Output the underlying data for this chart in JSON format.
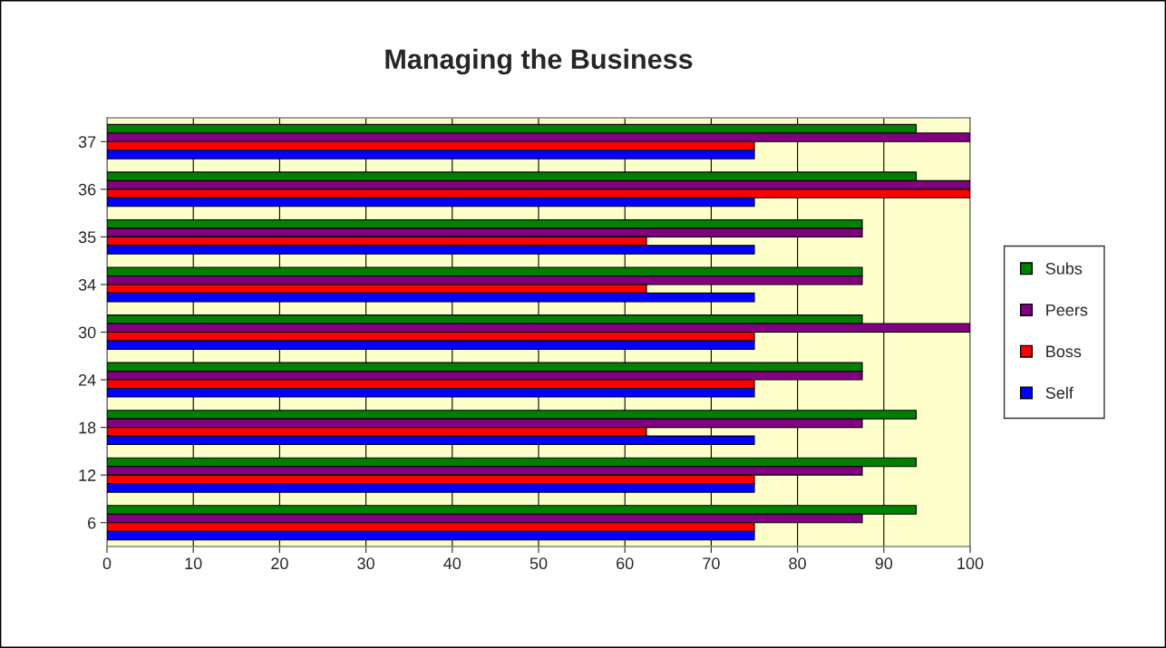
{
  "chart_data": {
    "type": "bar",
    "orientation": "horizontal",
    "title": "Managing the Business",
    "categories": [
      "37",
      "36",
      "35",
      "34",
      "30",
      "24",
      "18",
      "12",
      "6"
    ],
    "series": [
      {
        "name": "Subs",
        "color": "#008000",
        "values": [
          93.75,
          93.75,
          87.5,
          87.5,
          87.5,
          87.5,
          93.75,
          93.75,
          93.75
        ]
      },
      {
        "name": "Peers",
        "color": "#800080",
        "values": [
          100,
          100,
          87.5,
          87.5,
          100,
          87.5,
          87.5,
          87.5,
          87.5
        ]
      },
      {
        "name": "Boss",
        "color": "#ff0000",
        "values": [
          75,
          100,
          62.5,
          62.5,
          75,
          75,
          62.5,
          75,
          75
        ]
      },
      {
        "name": "Self",
        "color": "#0000ff",
        "values": [
          75,
          75,
          75,
          75,
          75,
          75,
          75,
          75,
          75
        ]
      }
    ],
    "xlim": [
      0,
      100
    ],
    "xticks": [
      0,
      10,
      20,
      30,
      40,
      50,
      60,
      70,
      80,
      90,
      100
    ],
    "grid": "x",
    "legend": "right"
  }
}
